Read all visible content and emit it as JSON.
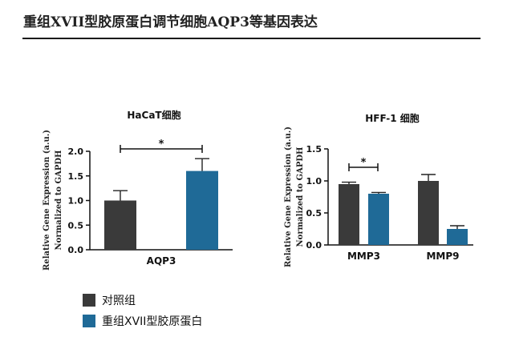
{
  "header": {
    "title": "重组XVII型胶原蛋白调节细胞AQP3等基因表达"
  },
  "colors": {
    "control": "#3a3a3a",
    "treatment": "#1f6a97",
    "axis": "#111111"
  },
  "legend": [
    {
      "label": "对照组",
      "color": "#3a3a3a"
    },
    {
      "label": "重组XVII型胶原蛋白",
      "color": "#1f6a97"
    }
  ],
  "chart_data": [
    {
      "type": "bar",
      "title": "HaCaT细胞",
      "ylabel_line1": "Relative Gene Expression (a.u.)",
      "ylabel_line2": "Normalized to GAPDH",
      "categories": [
        "AQP3"
      ],
      "ylim": [
        0,
        2.0
      ],
      "yticks": [
        0.0,
        0.5,
        1.0,
        1.5,
        2.0
      ],
      "ytick_labels": [
        "0.0",
        "0.5",
        "1.0",
        "1.5",
        "2.0"
      ],
      "series": [
        {
          "values": [
            1.0
          ],
          "errors": [
            0.2
          ]
        },
        {
          "values": [
            1.6
          ],
          "errors": [
            0.25
          ]
        }
      ],
      "significance": [
        {
          "label": "*"
        }
      ]
    },
    {
      "type": "bar",
      "title": "HFF-1 细胞",
      "ylabel_line1": "Relative Gene Expression (a.u.)",
      "ylabel_line2": "Normalized to GAPDH",
      "categories": [
        "MMP3",
        "MMP9"
      ],
      "ylim": [
        0,
        1.5
      ],
      "yticks": [
        0.0,
        0.5,
        1.0,
        1.5
      ],
      "ytick_labels": [
        "0.0",
        "0.5",
        "1.0",
        "1.5"
      ],
      "series": [
        {
          "values": [
            0.95,
            1.0
          ],
          "errors": [
            0.03,
            0.1
          ]
        },
        {
          "values": [
            0.8,
            0.25
          ],
          "errors": [
            0.02,
            0.05
          ]
        }
      ],
      "significance": [
        {
          "label": "*"
        }
      ]
    }
  ]
}
